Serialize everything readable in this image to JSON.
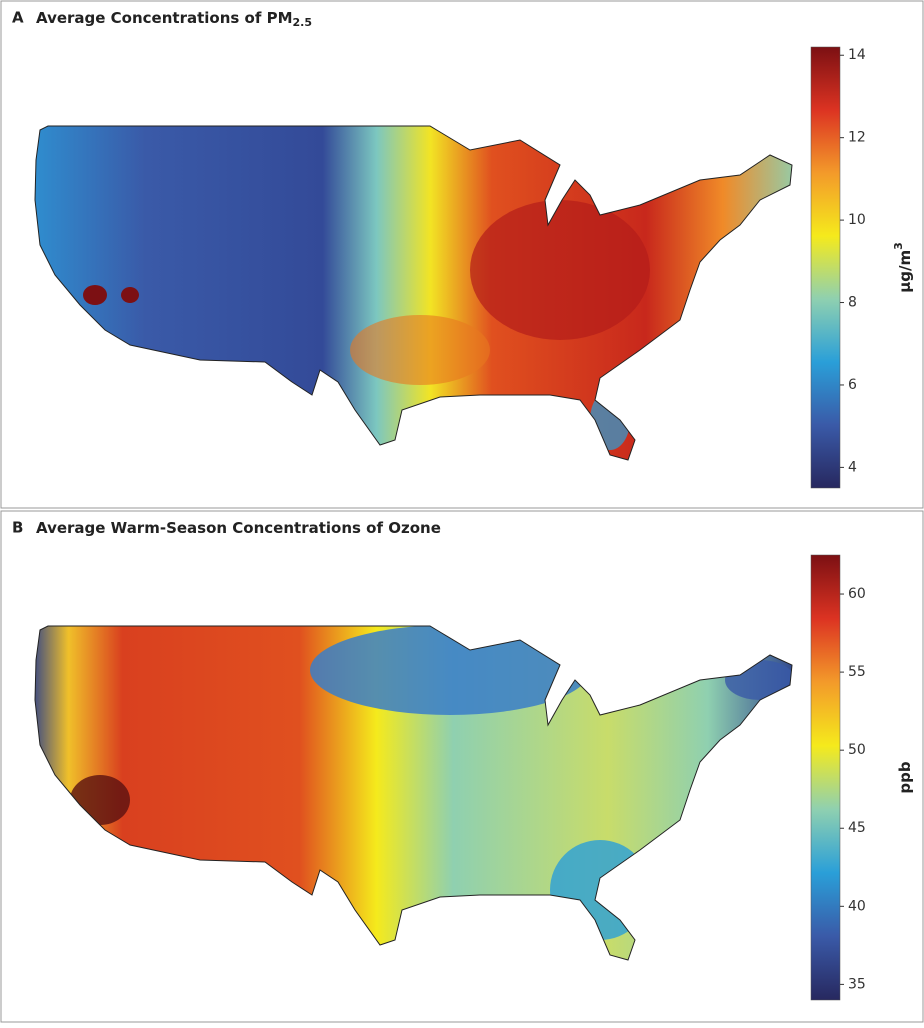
{
  "panels": [
    {
      "label": "A",
      "title": "Average Concentrations of PM",
      "title_sub": "2.5",
      "colorbar": {
        "lim": [
          3.5,
          14.2
        ],
        "ticks": [
          4,
          6,
          8,
          10,
          12,
          14
        ],
        "label": "μg/m",
        "label_sup": "3",
        "colors": [
          "#27285f",
          "#3a5aa8",
          "#2a9fd8",
          "#8fd0b0",
          "#f5ea1c",
          "#f39a2a",
          "#dc3322",
          "#7c1013"
        ]
      }
    },
    {
      "label": "B",
      "title": "Average Warm-Season Concentrations of Ozone",
      "colorbar": {
        "lim": [
          34,
          62.5
        ],
        "ticks": [
          35,
          40,
          45,
          50,
          55,
          60
        ],
        "label": "ppb",
        "colors": [
          "#27285f",
          "#3a5aa8",
          "#2a9fd8",
          "#8fd0b0",
          "#f5ea1c",
          "#f39a2a",
          "#dc3322",
          "#7c1013"
        ]
      }
    }
  ]
}
